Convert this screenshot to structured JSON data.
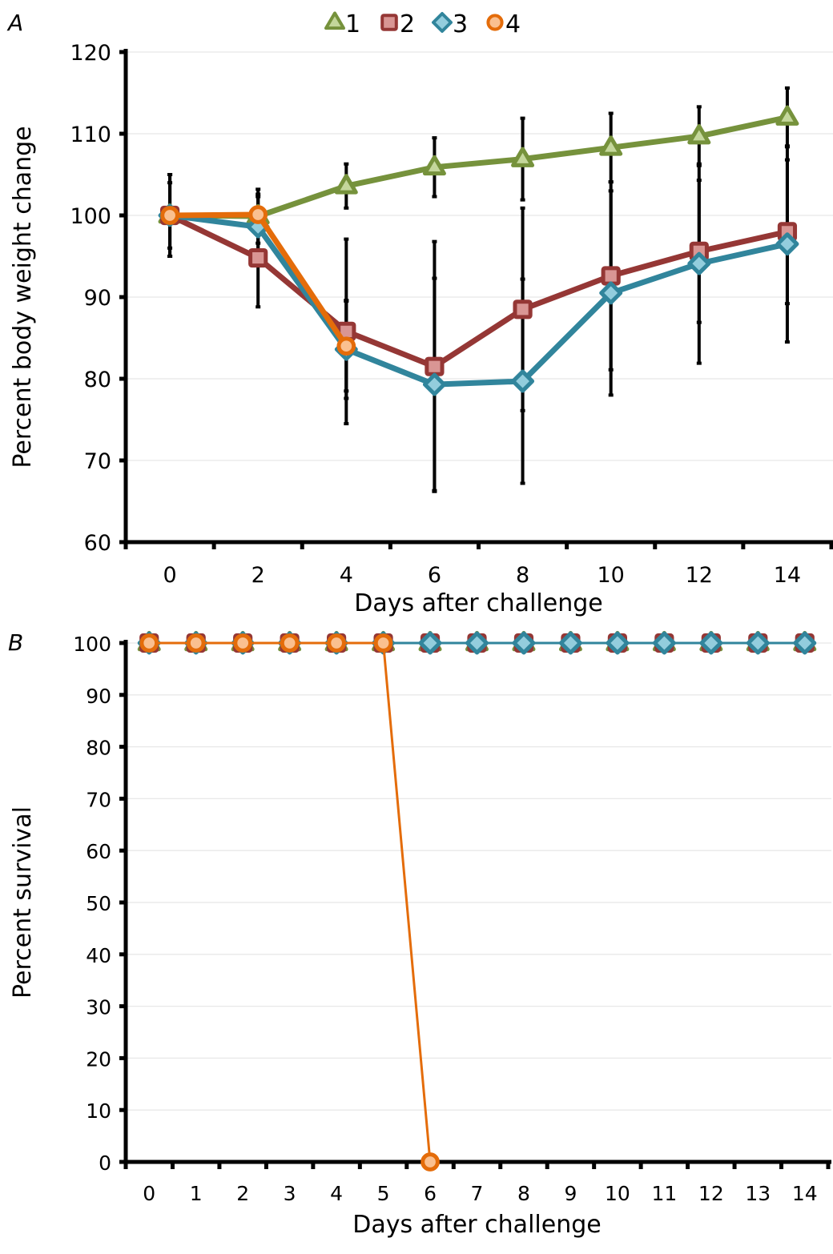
{
  "legend": [
    {
      "label": "1",
      "marker": "triangle",
      "color": "#76923c",
      "fill": "#c4d79b"
    },
    {
      "label": "2",
      "marker": "square",
      "color": "#953735",
      "fill": "#d99694"
    },
    {
      "label": "3",
      "marker": "diamond",
      "color": "#31859c",
      "fill": "#93cddd"
    },
    {
      "label": "4",
      "marker": "circle",
      "color": "#e46c0a",
      "fill": "#fac090"
    }
  ],
  "chart_data": [
    {
      "panel": "A",
      "type": "line",
      "xlabel": "Days after challenge",
      "ylabel": "Percent body weight change",
      "categories": [
        "0",
        "2",
        "4",
        "6",
        "8",
        "10",
        "12",
        "14"
      ],
      "ylim": [
        60,
        120
      ],
      "yticks": [
        60,
        70,
        80,
        90,
        100,
        110,
        120
      ],
      "grid": true,
      "legend_position": "top-center",
      "series": [
        {
          "name": "1",
          "values": [
            100,
            99.9,
            103.6,
            105.9,
            106.9,
            108.3,
            109.7,
            112.0
          ],
          "error": [
            5.0,
            3.3,
            2.7,
            3.6,
            5.0,
            4.2,
            3.6,
            3.6
          ]
        },
        {
          "name": "2",
          "values": [
            100,
            94.8,
            85.8,
            81.5,
            88.5,
            92.6,
            95.6,
            98.0
          ],
          "error": [
            5.0,
            6.0,
            11.3,
            15.3,
            12.4,
            11.5,
            8.7,
            8.8
          ]
        },
        {
          "name": "3",
          "values": [
            100,
            98.6,
            83.6,
            79.3,
            79.7,
            90.5,
            94.1,
            96.5
          ],
          "error": [
            4.0,
            3.7,
            6.0,
            13.0,
            12.5,
            12.5,
            12.2,
            12.0
          ]
        },
        {
          "name": "4",
          "values": [
            100,
            100.1,
            84.0,
            null,
            null,
            null,
            null,
            null
          ],
          "error": [
            5.0,
            2.5,
            5.5,
            null,
            null,
            null,
            null,
            null
          ]
        }
      ]
    },
    {
      "panel": "B",
      "type": "line",
      "xlabel": "Days after challenge",
      "ylabel": "Percent survival",
      "categories": [
        "0",
        "1",
        "2",
        "3",
        "4",
        "5",
        "6",
        "7",
        "8",
        "9",
        "10",
        "11",
        "12",
        "13",
        "14"
      ],
      "ylim": [
        0,
        100
      ],
      "yticks": [
        0,
        10,
        20,
        30,
        40,
        50,
        60,
        70,
        80,
        90,
        100
      ],
      "grid": true,
      "series": [
        {
          "name": "1",
          "values": [
            100,
            100,
            100,
            100,
            100,
            100,
            100,
            100,
            100,
            100,
            100,
            100,
            100,
            100,
            100
          ]
        },
        {
          "name": "2",
          "values": [
            100,
            100,
            100,
            100,
            100,
            100,
            100,
            100,
            100,
            100,
            100,
            100,
            100,
            100,
            100
          ]
        },
        {
          "name": "3",
          "values": [
            100,
            100,
            100,
            100,
            100,
            100,
            100,
            100,
            100,
            100,
            100,
            100,
            100,
            100,
            100
          ]
        },
        {
          "name": "4",
          "values": [
            100,
            100,
            100,
            100,
            100,
            100,
            0,
            null,
            null,
            null,
            null,
            null,
            null,
            null,
            null
          ]
        }
      ]
    }
  ]
}
